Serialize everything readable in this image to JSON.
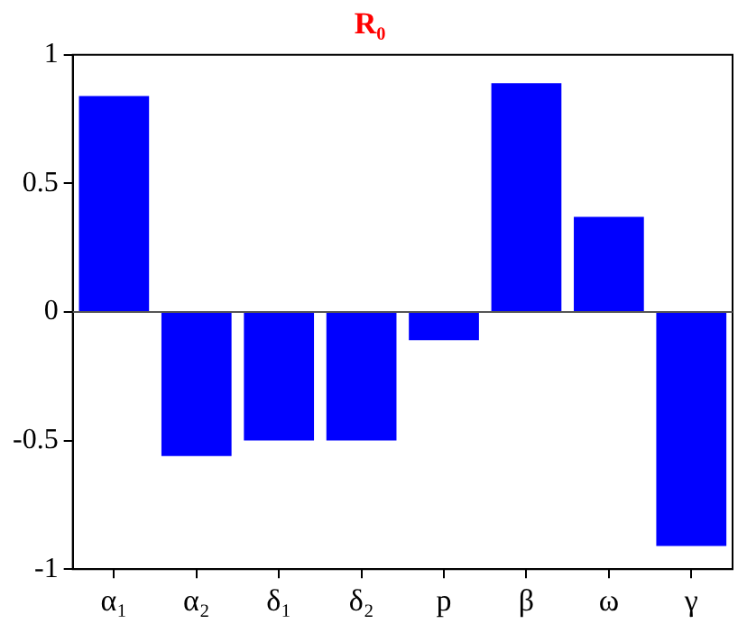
{
  "chart_data": {
    "type": "bar",
    "title": "R₀",
    "categories": [
      "α₁",
      "α₂",
      "δ₁",
      "δ₂",
      "p",
      "β",
      "ω",
      "γ"
    ],
    "values": [
      0.84,
      -0.56,
      -0.5,
      -0.5,
      -0.11,
      0.89,
      0.37,
      -0.91
    ],
    "color": "#0000ff",
    "ylim": [
      -1,
      1
    ],
    "yticks": [
      -1,
      -0.5,
      0,
      0.5,
      1
    ],
    "grid": false,
    "legend": false,
    "ref_lines": [
      {
        "axis": "y",
        "value": 0,
        "color": "#555555"
      }
    ]
  }
}
